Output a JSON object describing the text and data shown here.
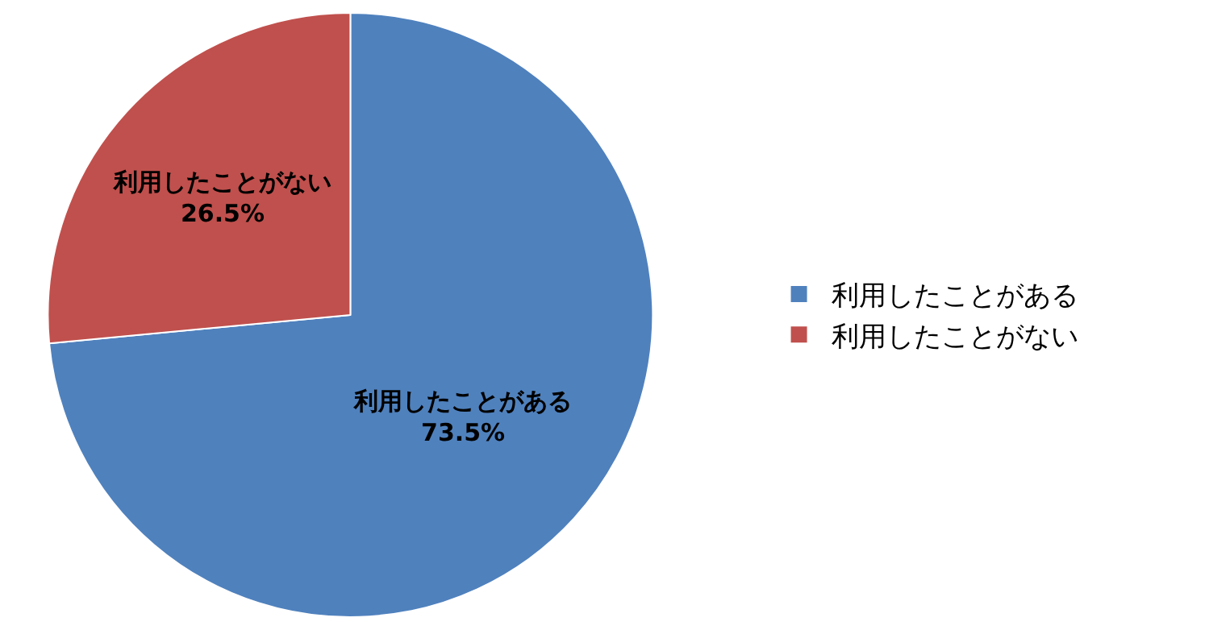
{
  "chart_data": {
    "type": "pie",
    "categories": [
      "利用したことがある",
      "利用したことがない"
    ],
    "values": [
      73.5,
      26.5
    ],
    "colors": [
      "#4f81bd",
      "#c0504d"
    ],
    "value_labels": [
      "73.5%",
      "26.5%"
    ],
    "legend": "right"
  }
}
